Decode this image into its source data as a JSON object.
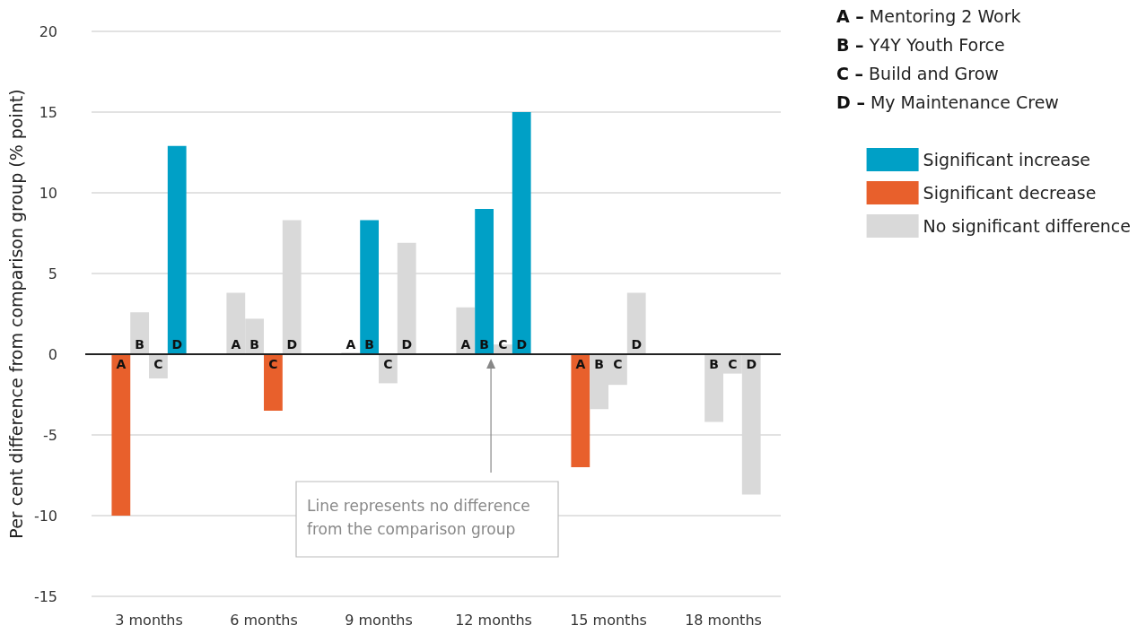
{
  "chart_data": {
    "type": "bar",
    "ylabel": "Per cent difference from comparison group (% point)",
    "categories": [
      "3 months",
      "6 months",
      "9 months",
      "12 months",
      "15 months",
      "18 months"
    ],
    "ylim": [
      -15,
      20
    ],
    "yticks": [
      -15,
      -10,
      -5,
      0,
      5,
      10,
      15,
      20
    ],
    "grid": "y",
    "legend": "top right",
    "series": [
      {
        "values": [
          -10,
          3.8,
          0.1,
          2.9,
          -7,
          0
        ],
        "colors": [
          "#e8602c",
          "#d9d9d9",
          "#d9d9d9",
          "#d9d9d9",
          "#e8602c",
          "#d9d9d9"
        ],
        "value_labels": [
          "A",
          "A",
          "A",
          "A",
          "A",
          null
        ]
      },
      {
        "values": [
          2.6,
          2.2,
          8.3,
          9,
          -3.4,
          -4.2
        ],
        "colors": [
          "#d9d9d9",
          "#d9d9d9",
          "#00a0c6",
          "#00a0c6",
          "#d9d9d9",
          "#d9d9d9"
        ],
        "value_labels": [
          "B",
          "B",
          "B",
          "B",
          "B",
          "B"
        ]
      },
      {
        "values": [
          -1.5,
          -3.5,
          -1.8,
          0.6,
          -1.9,
          -1.2
        ],
        "colors": [
          "#d9d9d9",
          "#e8602c",
          "#d9d9d9",
          "#d9d9d9",
          "#d9d9d9",
          "#d9d9d9"
        ],
        "value_labels": [
          "C",
          "C",
          "C",
          "C",
          "C",
          "C"
        ]
      },
      {
        "values": [
          12.9,
          8.3,
          6.9,
          15,
          3.8,
          -8.7
        ],
        "colors": [
          "#00a0c6",
          "#d9d9d9",
          "#d9d9d9",
          "#00a0c6",
          "#d9d9d9",
          "#d9d9d9"
        ],
        "value_labels": [
          "D",
          "D",
          "D",
          "D",
          "D",
          "D"
        ]
      },
      {
        "name": "Significant increase",
        "color": "#00a0c6",
        "values": [
          null,
          null,
          null,
          null,
          null,
          null
        ]
      },
      {
        "name": "Significant decrease",
        "color": "#e8602c",
        "values": [
          null,
          null,
          null,
          null,
          null,
          null
        ]
      },
      {
        "name": "No significant difference",
        "color": "#d9d9d9",
        "values": [
          null,
          null,
          null,
          null,
          null,
          null
        ]
      }
    ],
    "annotations": [
      "A – Mentoring 2 Work",
      "B – Y4Y Youth Force",
      "C – Build and Grow",
      "D – My Maintenance Crew",
      "Line represents no difference from the comparison group"
    ]
  }
}
